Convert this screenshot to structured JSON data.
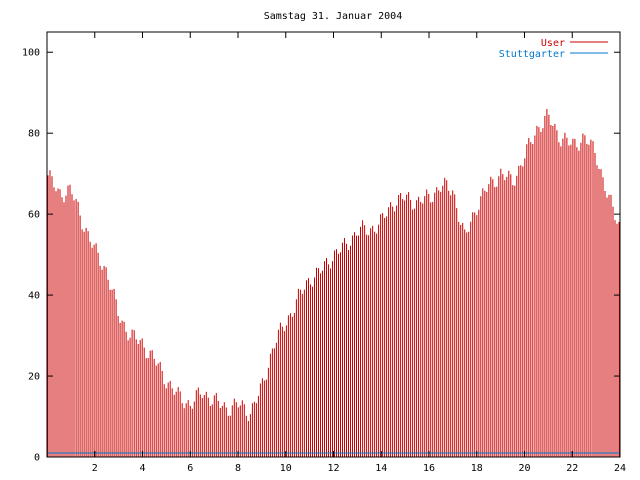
{
  "chart_data": {
    "type": "bar",
    "title": "Samstag 31. Januar 2004",
    "xlabel": "",
    "ylabel": "",
    "xlim": [
      0,
      24
    ],
    "ylim": [
      0,
      105
    ],
    "xticks": [
      2,
      4,
      6,
      8,
      10,
      12,
      14,
      16,
      18,
      20,
      22,
      24
    ],
    "yticks": [
      0,
      20,
      40,
      60,
      80,
      100
    ],
    "grid": false,
    "legend_position": "top-right",
    "series": [
      {
        "name": "User",
        "color": "#cc0000",
        "x": [
          0,
          0.5,
          1,
          1.5,
          2,
          2.5,
          3,
          3.5,
          4,
          4.5,
          5,
          5.5,
          6,
          6.5,
          7,
          7.5,
          8,
          8.5,
          9,
          9.5,
          10,
          10.5,
          11,
          11.5,
          12,
          12.5,
          13,
          13.5,
          14,
          14.5,
          15,
          15.5,
          16,
          16.5,
          17,
          17.5,
          18,
          18.5,
          19,
          19.5,
          20,
          20.5,
          21,
          21.5,
          22,
          22.5,
          23,
          23.5,
          24
        ],
        "values": [
          70,
          65,
          66,
          58,
          51,
          46,
          35,
          30,
          28,
          24,
          19,
          15,
          13,
          16,
          14,
          12,
          13,
          11,
          17,
          28,
          33,
          39,
          44,
          46,
          50,
          52,
          56,
          56,
          58,
          63,
          64,
          63,
          64,
          67,
          66,
          54,
          62,
          67,
          70,
          68,
          74,
          81,
          84,
          79,
          77,
          79,
          75,
          64,
          57
        ]
      },
      {
        "name": "Stuttgarter",
        "color": "#0077cc",
        "x": [
          0,
          24
        ],
        "values": [
          1,
          1
        ]
      }
    ]
  }
}
